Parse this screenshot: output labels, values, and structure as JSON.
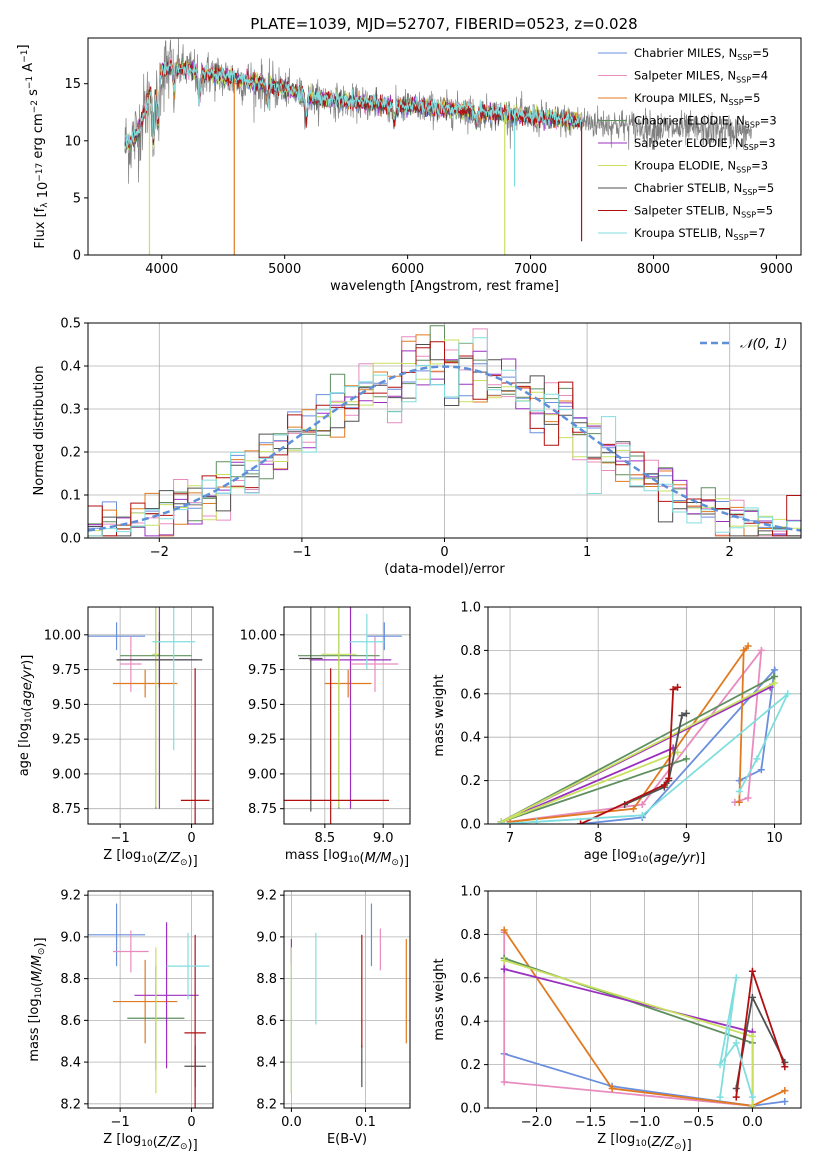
{
  "figure_title": "PLATE=1039, MJD=52707, FIBERID=0523, z=0.028",
  "series_names": [
    "Chabrier MILES, N<sub>SSP</sub>=5",
    "Salpeter MILES, N<sub>SSP</sub>=4",
    "Kroupa MILES, N<sub>SSP</sub>=5",
    "Chabrier ELODIE, N<sub>SSP</sub>=3",
    "Salpeter ELODIE, N<sub>SSP</sub>=3",
    "Kroupa ELODIE, N<sub>SSP</sub>=3",
    "Chabrier STELIB, N<sub>SSP</sub>=5",
    "Salpeter STELIB, N<sub>SSP</sub>=5",
    "Kroupa STELIB, N<sub>SSP</sub>=7"
  ],
  "colors": {
    "series": [
      "#6a8fdd",
      "#e88cc0",
      "#e07a20",
      "#5f8f5f",
      "#9b30c0",
      "#c8e060",
      "#505050",
      "#b01010",
      "#80dede"
    ],
    "data": "#808080",
    "gaussian": "#5f8fd8",
    "grid": "#b0b0b0"
  },
  "chart_data": [
    {
      "id": "spectrum",
      "type": "line",
      "title": "PLATE=1039, MJD=52707, FIBERID=0523, z=0.028",
      "xlabel": "wavelength [Angstrom, rest frame]",
      "ylabel": "Flux [f_λ 10^-17 erg cm^-2 s^-1 A^-1]",
      "xlim": [
        3400,
        9200
      ],
      "ylim": [
        0,
        19
      ],
      "xticks": [
        4000,
        5000,
        6000,
        7000,
        8000,
        9000
      ],
      "yticks": [
        0,
        5,
        10,
        15
      ],
      "grid": false,
      "legend_position": "top-right",
      "observed_range": [
        3700,
        8800
      ],
      "model_range": [
        3700,
        7420
      ],
      "continuum_anchors": {
        "x": [
          3700,
          3800,
          3900,
          4000,
          4100,
          4300,
          4500,
          4700,
          5000,
          5200,
          5500,
          6000,
          6500,
          7000,
          7500,
          8000,
          8500,
          8800
        ],
        "y": [
          9.5,
          10.5,
          14.0,
          16.0,
          16.5,
          16.0,
          15.6,
          15.2,
          14.5,
          13.8,
          13.4,
          13.0,
          12.6,
          12.0,
          11.6,
          11.1,
          10.9,
          10.8
        ]
      },
      "absorption_dips": [
        {
          "x": 3934,
          "depth": 5
        },
        {
          "x": 3969,
          "depth": 4
        },
        {
          "x": 4101,
          "depth": 2
        },
        {
          "x": 4305,
          "depth": 2.5
        },
        {
          "x": 4861,
          "depth": 1.5
        },
        {
          "x": 5175,
          "depth": 2
        },
        {
          "x": 5893,
          "depth": 1.5
        },
        {
          "x": 6563,
          "depth": 1
        }
      ],
      "spikes": [
        {
          "x": 3900,
          "y": 0,
          "series": 5
        },
        {
          "x": 4590,
          "y": 0,
          "series": 2
        },
        {
          "x": 6790,
          "y": 0,
          "series": 5
        },
        {
          "x": 6870,
          "y": 6,
          "series": 8
        },
        {
          "x": 7415,
          "y": 1.2,
          "series": 7
        }
      ],
      "noise_amplitude": 1.6
    },
    {
      "id": "residuals",
      "type": "histogram",
      "xlabel": "(data-model)/error",
      "ylabel": "Normed distribution",
      "xlim": [
        -2.5,
        2.5
      ],
      "ylim": [
        0,
        0.5
      ],
      "xticks": [
        -2,
        -1,
        0,
        1,
        2
      ],
      "yticks": [
        0,
        0.1,
        0.2,
        0.3,
        0.4,
        0.5
      ],
      "grid": true,
      "bin_width": 0.1,
      "legend_position": "top-right",
      "gaussian_label": "𝒩(0, 1)",
      "gaussian": {
        "mean": 0,
        "sigma": 1
      },
      "jitter": 0.045
    },
    {
      "id": "age_vs_Z",
      "type": "errorbar",
      "xlabel": "Z [log10(Z/Z⊙)]",
      "ylabel": "age [log10(age/yr)]",
      "xlim": [
        -1.45,
        0.3
      ],
      "ylim": [
        8.64,
        10.2
      ],
      "xticks": [
        -1,
        0
      ],
      "yticks": [
        8.75,
        9.0,
        9.25,
        9.5,
        9.75,
        10.0
      ],
      "grid": true,
      "points": [
        {
          "x": -1.05,
          "xerr": 0.4,
          "y": 9.99,
          "yerr": 0.1
        },
        {
          "x": -0.85,
          "xerr": 0.15,
          "y": 9.79,
          "yerr": 0.2
        },
        {
          "x": -0.65,
          "xerr": 0.45,
          "y": 9.65,
          "yerr": 0.1
        },
        {
          "x": -0.5,
          "xerr": 0.5,
          "y": 9.85,
          "yerr": 1.1
        },
        {
          "x": -0.45,
          "xerr": 0.55,
          "y": 9.82,
          "yerr": 1.07
        },
        {
          "x": -0.5,
          "xerr": 0.05,
          "y": 9.86,
          "yerr": 1.1
        },
        {
          "x": -0.45,
          "xerr": 0.6,
          "y": 9.82,
          "yerr": 0.2
        },
        {
          "x": 0.05,
          "xerr": 0.2,
          "y": 8.81,
          "yerr": 0.95
        },
        {
          "x": -0.25,
          "xerr": 0.3,
          "y": 9.95,
          "yerr": 0.78
        }
      ]
    },
    {
      "id": "age_vs_mass",
      "type": "errorbar",
      "xlabel": "mass [log10(M/M⊙)]",
      "ylabel": "",
      "xlim": [
        8.15,
        9.23
      ],
      "ylim": [
        8.64,
        10.2
      ],
      "xticks": [
        8.5,
        9.0
      ],
      "yticks": [
        8.75,
        9.0,
        9.25,
        9.5,
        9.75,
        10.0
      ],
      "grid": true,
      "points": [
        {
          "x": 9.01,
          "xerr": 0.15,
          "y": 9.99,
          "yerr": 0.1
        },
        {
          "x": 8.93,
          "xerr": 0.2,
          "y": 9.79,
          "yerr": 0.2
        },
        {
          "x": 8.7,
          "xerr": 0.2,
          "y": 9.65,
          "yerr": 0.1
        },
        {
          "x": 8.62,
          "xerr": 0.35,
          "y": 9.85,
          "yerr": 1.1
        },
        {
          "x": 8.72,
          "xerr": 0.35,
          "y": 9.82,
          "yerr": 1.07
        },
        {
          "x": 8.62,
          "xerr": 0.15,
          "y": 9.86,
          "yerr": 1.1
        },
        {
          "x": 8.38,
          "xerr": 0.1,
          "y": 9.83,
          "yerr": 1.1
        },
        {
          "x": 8.55,
          "xerr": 0.5,
          "y": 8.81,
          "yerr": 0.95
        },
        {
          "x": 8.86,
          "xerr": 0.15,
          "y": 9.95,
          "yerr": 0.2
        }
      ]
    },
    {
      "id": "weights_vs_age",
      "type": "line",
      "xlabel": "age [log10(age/yr)]",
      "ylabel": "mass weight",
      "xlim": [
        6.75,
        10.3
      ],
      "ylim": [
        0,
        1
      ],
      "xticks": [
        7,
        8,
        9,
        10
      ],
      "yticks": [
        0,
        0.2,
        0.4,
        0.6,
        0.8,
        1.0
      ],
      "grid": true,
      "series": [
        {
          "x": [
            9.6,
            9.85,
            10.0,
            8.5,
            7.8
          ],
          "y": [
            0.2,
            0.25,
            0.71,
            0.03,
            0.0
          ]
        },
        {
          "x": [
            9.55,
            9.7,
            9.85,
            8.5,
            7.0
          ],
          "y": [
            0.1,
            0.12,
            0.8,
            0.09,
            0.01
          ]
        },
        {
          "x": [
            9.6,
            9.65,
            9.7,
            8.4,
            7.0
          ],
          "y": [
            0.1,
            0.8,
            0.82,
            0.07,
            0.01
          ]
        },
        {
          "x": [
            10.0,
            6.9,
            9.0
          ],
          "y": [
            0.68,
            0.01,
            0.3
          ]
        },
        {
          "x": [
            9.95,
            6.9,
            8.85
          ],
          "y": [
            0.63,
            0.01,
            0.35
          ]
        },
        {
          "x": [
            10.0,
            6.9,
            8.9
          ],
          "y": [
            0.65,
            0.01,
            0.33
          ]
        },
        {
          "x": [
            8.3,
            8.75,
            8.8,
            8.95,
            9.0
          ],
          "y": [
            0.09,
            0.17,
            0.2,
            0.5,
            0.51
          ]
        },
        {
          "x": [
            7.8,
            8.75,
            8.8,
            8.85,
            8.9
          ],
          "y": [
            0.0,
            0.18,
            0.21,
            0.62,
            0.63
          ]
        },
        {
          "x": [
            9.6,
            9.8,
            10.15,
            8.5,
            7.3,
            6.9
          ],
          "y": [
            0.15,
            0.3,
            0.6,
            0.04,
            0.01,
            0.0
          ]
        }
      ]
    },
    {
      "id": "mass_vs_Z",
      "type": "errorbar",
      "xlabel": "Z [log10(Z/Z⊙)]",
      "ylabel": "mass [log10(M/M⊙)]",
      "xlim": [
        -1.45,
        0.3
      ],
      "ylim": [
        8.18,
        9.22
      ],
      "xticks": [
        -1,
        0
      ],
      "yticks": [
        8.2,
        8.4,
        8.6,
        8.8,
        9.0,
        9.2
      ],
      "grid": true,
      "points": [
        {
          "x": -1.05,
          "xerr": 0.4,
          "y": 9.01,
          "yerr": 0.15
        },
        {
          "x": -0.85,
          "xerr": 0.25,
          "y": 8.93,
          "yerr": 0.1
        },
        {
          "x": -0.65,
          "xerr": 0.45,
          "y": 8.69,
          "yerr": 0.2
        },
        {
          "x": -0.5,
          "xerr": 0.4,
          "y": 8.61,
          "yerr": 0.25
        },
        {
          "x": -0.35,
          "xerr": 0.45,
          "y": 8.72,
          "yerr": 0.35
        },
        {
          "x": -0.5,
          "xerr": 0.02,
          "y": 8.6,
          "yerr": 0.35
        },
        {
          "x": 0.05,
          "xerr": 0.15,
          "y": 8.38,
          "yerr": 0.1
        },
        {
          "x": 0.05,
          "xerr": 0.15,
          "y": 8.54,
          "yerr": 0.47
        },
        {
          "x": -0.05,
          "xerr": 0.3,
          "y": 8.86,
          "yerr": 0.16
        }
      ]
    },
    {
      "id": "mass_vs_EBV",
      "type": "errorbar",
      "xlabel": "E(B-V)",
      "ylabel": "",
      "xlim": [
        -0.01,
        0.16
      ],
      "ylim": [
        8.18,
        9.22
      ],
      "xticks": [
        0.0,
        0.1
      ],
      "yticks": [
        8.2,
        8.4,
        8.6,
        8.8,
        9.0,
        9.2
      ],
      "grid": true,
      "points": [
        {
          "x": 0.108,
          "xerr": 0,
          "y": 9.01,
          "yerr": 0.15
        },
        {
          "x": 0.12,
          "xerr": 0,
          "y": 8.94,
          "yerr": 0.1
        },
        {
          "x": 0.155,
          "xerr": 0,
          "y": 8.74,
          "yerr": 0.25
        },
        {
          "x": 0.0,
          "xerr": 0,
          "y": 8.6,
          "yerr": 0.35
        },
        {
          "x": 0.0,
          "xerr": 0,
          "y": 8.93,
          "yerr": 0.06
        },
        {
          "x": 0.0,
          "xerr": 0,
          "y": 8.6,
          "yerr": 0.35
        },
        {
          "x": 0.095,
          "xerr": 0,
          "y": 8.38,
          "yerr": 0.1
        },
        {
          "x": 0.095,
          "xerr": 0,
          "y": 8.74,
          "yerr": 0.27
        },
        {
          "x": 0.033,
          "xerr": 0,
          "y": 8.8,
          "yerr": 0.22
        }
      ]
    },
    {
      "id": "weights_vs_Z",
      "type": "line",
      "xlabel": "Z [log10(Z/Z⊙)]",
      "ylabel": "mass weight",
      "xlim": [
        -2.45,
        0.45
      ],
      "ylim": [
        0,
        1
      ],
      "xticks": [
        -2.0,
        -1.5,
        -1.0,
        -0.5,
        0.0
      ],
      "yticks": [
        0,
        0.2,
        0.4,
        0.6,
        0.8,
        1.0
      ],
      "grid": true,
      "series": [
        {
          "x": [
            -2.3,
            -1.3,
            0.0,
            0.3
          ],
          "y": [
            0.25,
            0.1,
            0.01,
            0.03
          ]
        },
        {
          "x": [
            -2.3,
            -2.3,
            0.0,
            0.3
          ],
          "y": [
            0.81,
            0.12,
            0.01,
            0.08
          ]
        },
        {
          "x": [
            -2.3,
            -1.3,
            0.0,
            0.3
          ],
          "y": [
            0.82,
            0.09,
            0.01,
            0.08
          ]
        },
        {
          "x": [
            -2.3,
            0.0,
            0.0
          ],
          "y": [
            0.69,
            0.3,
            0.01
          ]
        },
        {
          "x": [
            -2.3,
            0.0,
            0.0
          ],
          "y": [
            0.64,
            0.35,
            0.01
          ]
        },
        {
          "x": [
            -2.3,
            0.0,
            0.0
          ],
          "y": [
            0.68,
            0.33,
            0.01
          ]
        },
        {
          "x": [
            -0.15,
            0.0,
            0.3
          ],
          "y": [
            0.09,
            0.51,
            0.21
          ]
        },
        {
          "x": [
            -0.15,
            0.0,
            0.3
          ],
          "y": [
            0.05,
            0.63,
            0.19
          ]
        },
        {
          "x": [
            -0.3,
            -0.15,
            -0.3,
            -0.15,
            0.0
          ],
          "y": [
            0.05,
            0.6,
            0.2,
            0.3,
            0.05
          ]
        }
      ]
    }
  ]
}
